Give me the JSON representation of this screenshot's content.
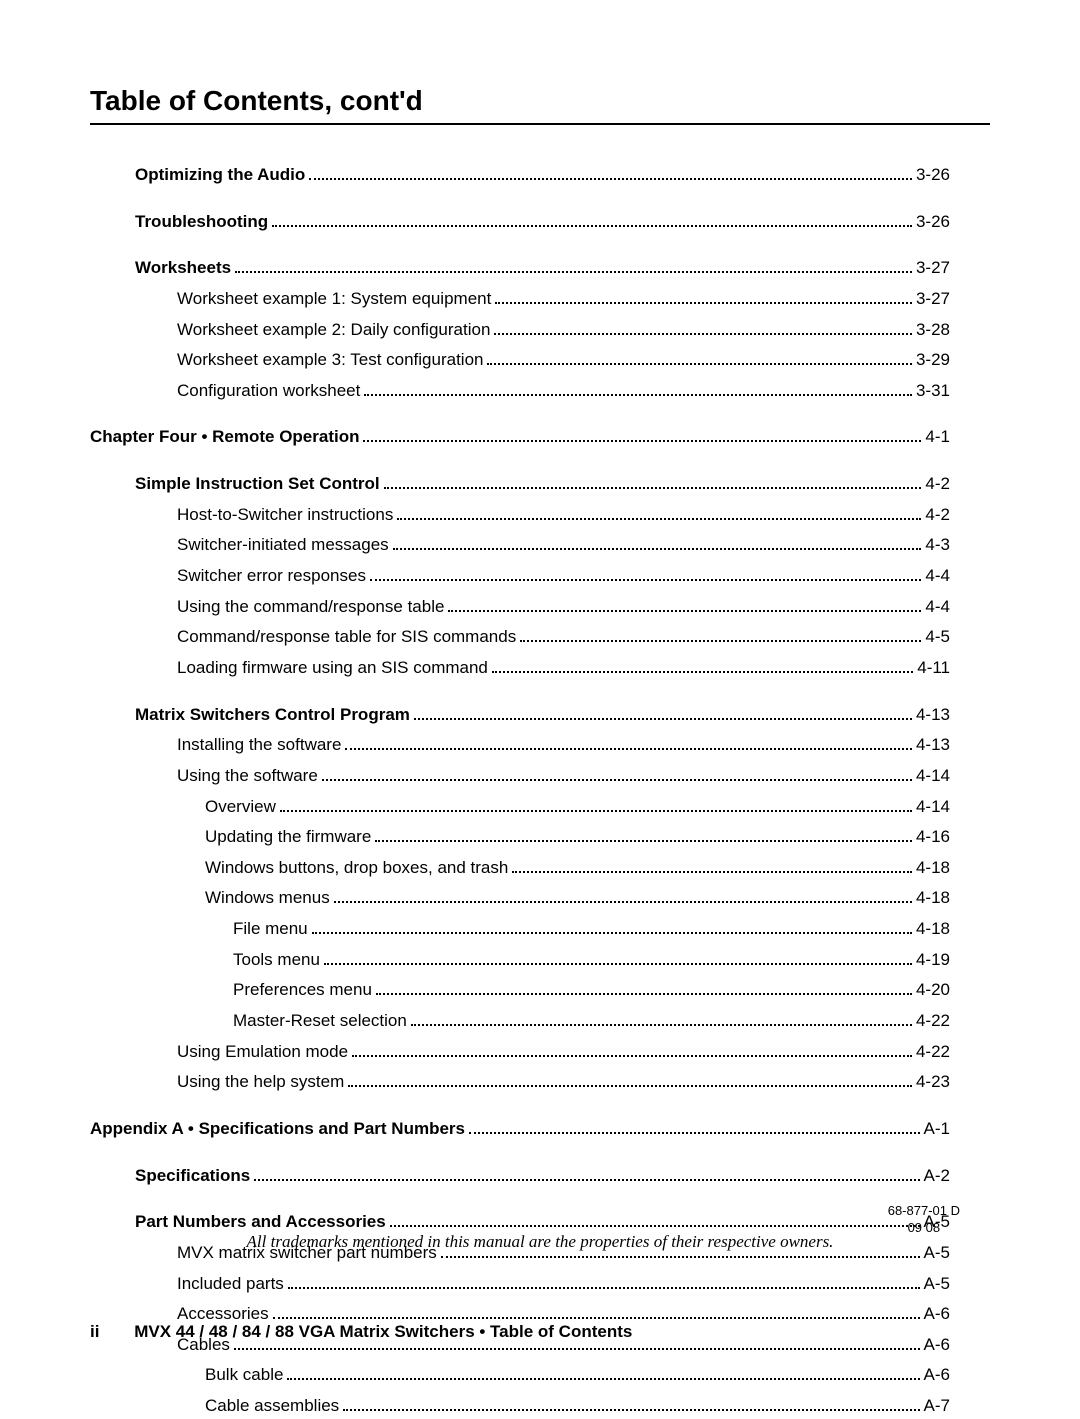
{
  "title": "Table of Contents, cont'd",
  "toc": [
    {
      "label": "Optimizing the Audio",
      "page": "3-26",
      "indent": 1,
      "bold": true,
      "gap": false
    },
    {
      "label": "Troubleshooting",
      "page": "3-26",
      "indent": 1,
      "bold": true,
      "gap": true
    },
    {
      "label": "Worksheets",
      "page": "3-27",
      "indent": 1,
      "bold": true,
      "gap": true
    },
    {
      "label": "Worksheet example 1: System equipment",
      "page": "3-27",
      "indent": 2,
      "bold": false
    },
    {
      "label": "Worksheet example 2: Daily configuration",
      "page": "3-28",
      "indent": 2,
      "bold": false
    },
    {
      "label": "Worksheet example 3: Test configuration",
      "page": "3-29",
      "indent": 2,
      "bold": false
    },
    {
      "label": "Configuration worksheet",
      "page": "3-31",
      "indent": 2,
      "bold": false
    },
    {
      "label": "Chapter Four • Remote Operation",
      "page": "4-1",
      "indent": 0,
      "bold": true,
      "gap": true
    },
    {
      "label": "Simple Instruction Set Control",
      "page": "4-2",
      "indent": 1,
      "bold": true,
      "gap": true
    },
    {
      "label": "Host-to-Switcher instructions",
      "page": "4-2",
      "indent": 2,
      "bold": false
    },
    {
      "label": "Switcher-initiated messages",
      "page": "4-3",
      "indent": 2,
      "bold": false
    },
    {
      "label": "Switcher error responses",
      "page": "4-4",
      "indent": 2,
      "bold": false
    },
    {
      "label": "Using the command/response table",
      "page": "4-4",
      "indent": 2,
      "bold": false
    },
    {
      "label": "Command/response table for SIS commands",
      "page": "4-5",
      "indent": 2,
      "bold": false
    },
    {
      "label": "Loading firmware using an SIS command",
      "page": "4-11",
      "indent": 2,
      "bold": false
    },
    {
      "label": "Matrix Switchers Control Program",
      "page": "4-13",
      "indent": 1,
      "bold": true,
      "gap": true
    },
    {
      "label": "Installing the software",
      "page": "4-13",
      "indent": 2,
      "bold": false
    },
    {
      "label": "Using the software",
      "page": "4-14",
      "indent": 2,
      "bold": false
    },
    {
      "label": "Overview",
      "page": "4-14",
      "indent": 3,
      "bold": false
    },
    {
      "label": "Updating the firmware",
      "page": "4-16",
      "indent": 3,
      "bold": false
    },
    {
      "label": "Windows buttons, drop boxes, and trash",
      "page": "4-18",
      "indent": 3,
      "bold": false
    },
    {
      "label": "Windows menus",
      "page": "4-18",
      "indent": 3,
      "bold": false
    },
    {
      "label": "File menu",
      "page": "4-18",
      "indent": 4,
      "bold": false
    },
    {
      "label": "Tools menu",
      "page": "4-19",
      "indent": 4,
      "bold": false
    },
    {
      "label": "Preferences menu",
      "page": "4-20",
      "indent": 4,
      "bold": false
    },
    {
      "label": "Master-Reset selection",
      "page": "4-22",
      "indent": 4,
      "bold": false
    },
    {
      "label": "Using Emulation mode",
      "page": "4-22",
      "indent": 2,
      "bold": false
    },
    {
      "label": "Using the help system",
      "page": "4-23",
      "indent": 2,
      "bold": false
    },
    {
      "label": "Appendix A • Specifications and Part Numbers",
      "page": "A-1",
      "indent": 0,
      "bold": true,
      "gap": true
    },
    {
      "label": "Specifications",
      "page": "A-2",
      "indent": 1,
      "bold": true,
      "gap": true
    },
    {
      "label": "Part Numbers and Accessories",
      "page": "A-5",
      "indent": 1,
      "bold": true,
      "gap": true
    },
    {
      "label": "MVX matrix switcher part numbers",
      "page": "A-5",
      "indent": 2,
      "bold": false
    },
    {
      "label": "Included parts",
      "page": "A-5",
      "indent": 2,
      "bold": false
    },
    {
      "label": "Accessories",
      "page": "A-6",
      "indent": 2,
      "bold": false
    },
    {
      "label": "Cables",
      "page": "A-6",
      "indent": 2,
      "bold": false
    },
    {
      "label": "Bulk cable",
      "page": "A-6",
      "indent": 3,
      "bold": false
    },
    {
      "label": "Cable assemblies",
      "page": "A-7",
      "indent": 3,
      "bold": false
    }
  ],
  "footnote": "All trademarks mentioned in this manual are the properties of their respective owners.",
  "docnum_line1": "68-877-01 D",
  "docnum_line2": "09 08",
  "footer_pagenum": "ii",
  "footer_text": "MVX 44 / 48 / 84 / 88 VGA Matrix Switchers • Table of Contents"
}
